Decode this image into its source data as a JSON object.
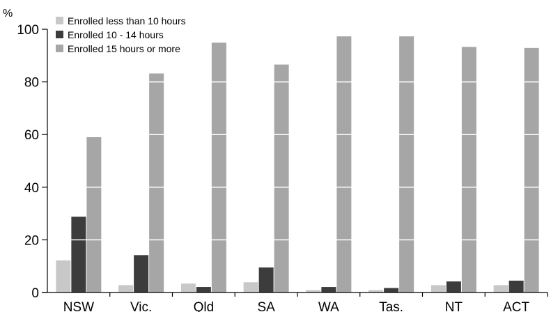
{
  "chart_data": {
    "type": "bar",
    "ylabel": "%",
    "ylim": [
      0,
      100
    ],
    "yticks": [
      0,
      20,
      40,
      60,
      80,
      100
    ],
    "grid": "horizontal lines drawn across bars only",
    "legend_position": "top-left",
    "categories": [
      "NSW",
      "Vic.",
      "Qld",
      "SA",
      "WA",
      "Tas.",
      "NT",
      "ACT"
    ],
    "series": [
      {
        "name": "Enrolled less than 10 hours",
        "color": "#c8c8c8",
        "values": [
          12.2,
          2.8,
          3.4,
          3.9,
          0.9,
          0.9,
          2.8,
          2.8
        ]
      },
      {
        "name": "Enrolled 10 - 14 hours",
        "color": "#3c3c3c",
        "values": [
          28.8,
          14.2,
          2.1,
          9.5,
          2.1,
          1.7,
          4.2,
          4.5
        ]
      },
      {
        "name": "Enrolled 15 hours or more",
        "color": "#a6a6a6",
        "values": [
          59.0,
          83.2,
          94.9,
          86.6,
          97.3,
          97.3,
          93.3,
          92.9
        ]
      }
    ]
  }
}
